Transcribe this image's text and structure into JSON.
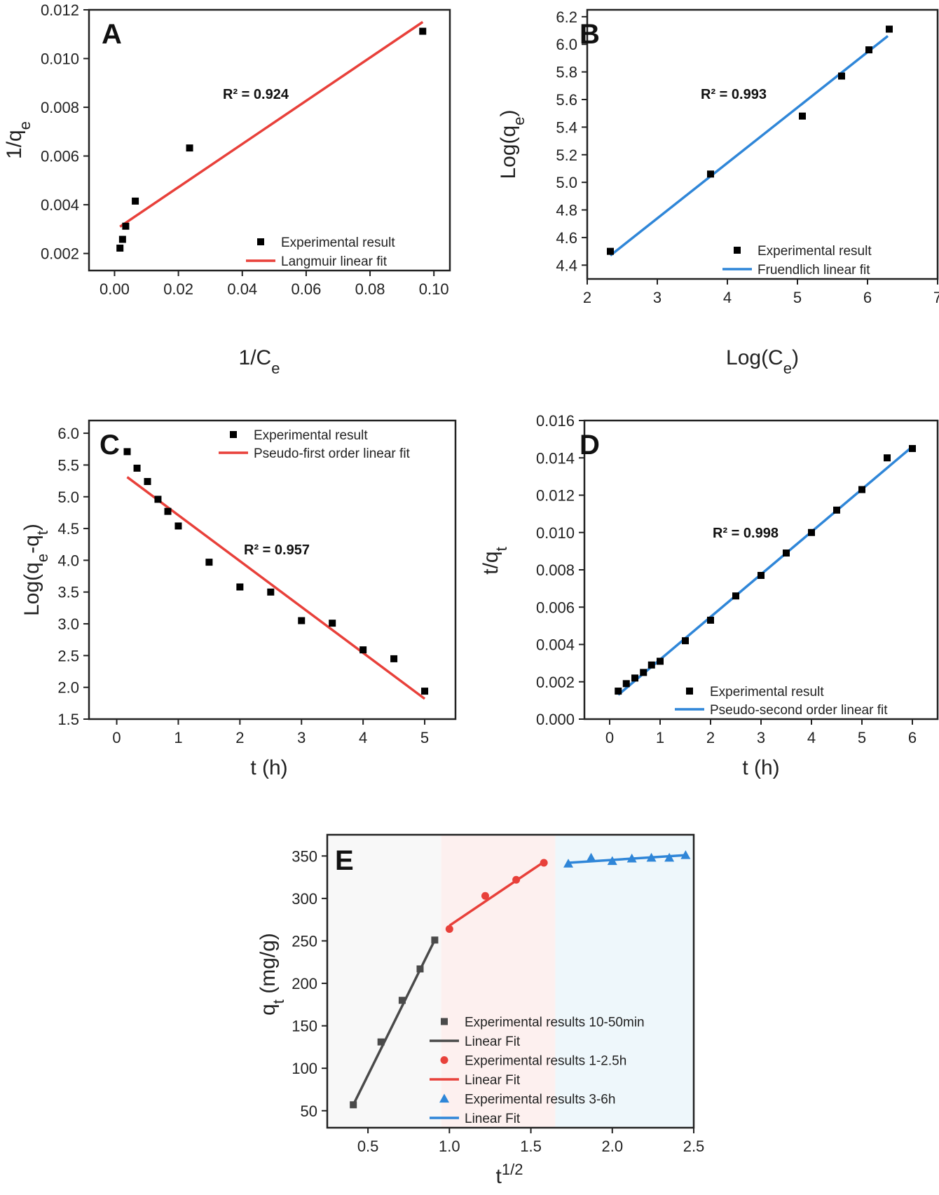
{
  "chart_data": [
    {
      "id": "A",
      "type": "scatter",
      "panel_label": "A",
      "xlabel": "1/C",
      "xlabel_sub": "e",
      "ylabel": "1/q",
      "ylabel_sub": "e",
      "xlim": [
        -0.008,
        0.105
      ],
      "ylim": [
        0.0013,
        0.012
      ],
      "xticks": [
        0.0,
        0.02,
        0.04,
        0.06,
        0.08,
        0.1
      ],
      "xtick_labels": [
        "0.00",
        "0.02",
        "0.04",
        "0.06",
        "0.08",
        "0.10"
      ],
      "yticks": [
        0.002,
        0.004,
        0.006,
        0.008,
        0.01,
        0.012
      ],
      "ytick_labels": [
        "0.002",
        "0.004",
        "0.006",
        "0.008",
        "0.010",
        "0.012"
      ],
      "r2_text": "R² = 0.924",
      "series": [
        {
          "name": "Experimental result",
          "kind": "scatter",
          "marker": "square",
          "color": "#000000",
          "x": [
            0.0017,
            0.0025,
            0.0035,
            0.0065,
            0.0235,
            0.0965
          ],
          "y": [
            0.00222,
            0.00258,
            0.00312,
            0.00415,
            0.00633,
            0.01112
          ]
        },
        {
          "name": "Langmuir linear fit",
          "kind": "line",
          "color": "#e8403a",
          "x": [
            0.0017,
            0.0965
          ],
          "y": [
            0.0031,
            0.0115
          ]
        }
      ],
      "legend_position": "bottom-right"
    },
    {
      "id": "B",
      "type": "scatter",
      "panel_label": "B",
      "xlabel": "Log(C",
      "xlabel_sub": "e",
      "xlabel_tail": ")",
      "ylabel": "Log(q",
      "ylabel_sub": "e",
      "ylabel_tail": ")",
      "xlim": [
        2,
        7
      ],
      "ylim": [
        4.3,
        6.25
      ],
      "xticks": [
        2,
        3,
        4,
        5,
        6,
        7
      ],
      "xtick_labels": [
        "2",
        "3",
        "4",
        "5",
        "6",
        "7"
      ],
      "yticks": [
        4.4,
        4.6,
        4.8,
        5.0,
        5.2,
        5.4,
        5.6,
        5.8,
        6.0,
        6.2
      ],
      "ytick_labels": [
        "4.4",
        "4.6",
        "4.8",
        "5.0",
        "5.2",
        "5.4",
        "5.6",
        "5.8",
        "6.0",
        "6.2"
      ],
      "r2_text": "R² = 0.993",
      "series": [
        {
          "name": "Experimental result",
          "kind": "scatter",
          "marker": "square",
          "color": "#000000",
          "x": [
            2.33,
            3.76,
            5.07,
            5.63,
            6.02,
            6.31
          ],
          "y": [
            4.5,
            5.06,
            5.48,
            5.77,
            5.96,
            6.11
          ]
        },
        {
          "name": "Fruendlich linear fit",
          "kind": "line",
          "color": "#2f86d8",
          "x": [
            2.33,
            6.29
          ],
          "y": [
            4.47,
            6.06
          ]
        }
      ],
      "legend_position": "bottom-right"
    },
    {
      "id": "C",
      "type": "scatter",
      "panel_label": "C",
      "xlabel": "t (h)",
      "ylabel": "Log(q",
      "ylabel_sub": "e",
      "ylabel_mid": "-q",
      "ylabel_sub2": "t",
      "ylabel_tail": ")",
      "xlim": [
        -0.45,
        5.5
      ],
      "ylim": [
        1.5,
        6.2
      ],
      "xticks": [
        0,
        1,
        2,
        3,
        4,
        5
      ],
      "xtick_labels": [
        "0",
        "1",
        "2",
        "3",
        "4",
        "5"
      ],
      "yticks": [
        1.5,
        2.0,
        2.5,
        3.0,
        3.5,
        4.0,
        4.5,
        5.0,
        5.5,
        6.0
      ],
      "ytick_labels": [
        "1.5",
        "2.0",
        "2.5",
        "3.0",
        "3.5",
        "4.0",
        "4.5",
        "5.0",
        "5.5",
        "6.0"
      ],
      "r2_text": "R² = 0.957",
      "series": [
        {
          "name": "Experimental result",
          "kind": "scatter",
          "marker": "square",
          "color": "#000000",
          "x": [
            0.17,
            0.33,
            0.5,
            0.67,
            0.83,
            1.0,
            1.5,
            2.0,
            2.5,
            3.0,
            3.5,
            4.0,
            4.5,
            5.0
          ],
          "y": [
            5.71,
            5.45,
            5.24,
            4.96,
            4.77,
            4.54,
            3.97,
            3.58,
            3.5,
            3.05,
            3.01,
            2.59,
            2.45,
            1.94
          ]
        },
        {
          "name": "Pseudo-first order linear fit",
          "kind": "line",
          "color": "#e8403a",
          "x": [
            0.17,
            5.0
          ],
          "y": [
            5.31,
            1.82
          ]
        }
      ],
      "legend_position": "top"
    },
    {
      "id": "D",
      "type": "scatter",
      "panel_label": "D",
      "xlabel": "t (h)",
      "ylabel": "t/q",
      "ylabel_sub": "t",
      "xlim": [
        -0.5,
        6.5
      ],
      "ylim": [
        0,
        0.016
      ],
      "xticks": [
        0,
        1,
        2,
        3,
        4,
        5,
        6
      ],
      "xtick_labels": [
        "0",
        "1",
        "2",
        "3",
        "4",
        "5",
        "6"
      ],
      "yticks": [
        0.0,
        0.002,
        0.004,
        0.006,
        0.008,
        0.01,
        0.012,
        0.014,
        0.016
      ],
      "ytick_labels": [
        "0.000",
        "0.002",
        "0.004",
        "0.006",
        "0.008",
        "0.010",
        "0.012",
        "0.014",
        "0.016"
      ],
      "r2_text": "R² = 0.998",
      "series": [
        {
          "name": "Experimental result",
          "kind": "scatter",
          "marker": "square",
          "color": "#000000",
          "x": [
            0.17,
            0.33,
            0.5,
            0.67,
            0.83,
            1.0,
            1.5,
            2.0,
            2.5,
            3.0,
            3.5,
            4.0,
            4.5,
            5.0,
            5.5,
            6.0
          ],
          "y": [
            0.0015,
            0.0019,
            0.0022,
            0.0025,
            0.0029,
            0.0031,
            0.0042,
            0.0053,
            0.0066,
            0.0077,
            0.0089,
            0.01,
            0.0112,
            0.0123,
            0.014,
            0.0145
          ]
        },
        {
          "name": "Pseudo-second order linear fit",
          "kind": "line",
          "color": "#2f86d8",
          "x": [
            0.17,
            6.0
          ],
          "y": [
            0.0013,
            0.0146
          ]
        }
      ],
      "legend_position": "bottom-right"
    },
    {
      "id": "E",
      "type": "scatter",
      "panel_label": "E",
      "xlabel": "t",
      "xlabel_sup": "1/2",
      "ylabel": "q",
      "ylabel_sub": "t",
      "ylabel_tail": " (mg/g)",
      "xlim": [
        0.25,
        2.5
      ],
      "ylim": [
        30,
        375
      ],
      "xticks": [
        0.5,
        1.0,
        1.5,
        2.0,
        2.5
      ],
      "xtick_labels": [
        "0.5",
        "1.0",
        "1.5",
        "2.0",
        "2.5"
      ],
      "yticks": [
        50,
        100,
        150,
        200,
        250,
        300,
        350
      ],
      "ytick_labels": [
        "50",
        "100",
        "150",
        "200",
        "250",
        "300",
        "350"
      ],
      "regions": [
        {
          "x0": 0.25,
          "x1": 0.95,
          "color": "#f8f8f8"
        },
        {
          "x0": 0.95,
          "x1": 1.65,
          "color": "#fdf0ef"
        },
        {
          "x0": 1.65,
          "x1": 2.5,
          "color": "#eef7fb"
        }
      ],
      "series": [
        {
          "name": "Experimental results 10-50min",
          "kind": "scatter",
          "marker": "square",
          "color": "#4a4a4a",
          "x": [
            0.41,
            0.58,
            0.71,
            0.82,
            0.91
          ],
          "y": [
            57,
            131,
            180,
            217,
            251
          ]
        },
        {
          "name": "Linear Fit",
          "kind": "line",
          "color": "#4a4a4a",
          "x": [
            0.41,
            0.91
          ],
          "y": [
            57,
            251
          ]
        },
        {
          "name": "Experimental results 1-2.5h",
          "kind": "scatter",
          "marker": "circle",
          "color": "#e8403a",
          "x": [
            1.0,
            1.22,
            1.41,
            1.58
          ],
          "y": [
            264,
            303,
            322,
            342
          ]
        },
        {
          "name": "Linear Fit",
          "kind": "line",
          "color": "#e8403a",
          "x": [
            1.0,
            1.58
          ],
          "y": [
            268,
            343
          ]
        },
        {
          "name": "Experimental results 3-6h",
          "kind": "scatter",
          "marker": "triangle",
          "color": "#2f86d8",
          "x": [
            1.73,
            1.87,
            2.0,
            2.12,
            2.24,
            2.35,
            2.45
          ],
          "y": [
            341,
            348,
            344,
            347,
            348,
            348,
            351
          ]
        },
        {
          "name": "Linear Fit",
          "kind": "line",
          "color": "#2f86d8",
          "x": [
            1.73,
            2.45
          ],
          "y": [
            342,
            351
          ]
        }
      ],
      "legend_position": "bottom-right"
    }
  ]
}
